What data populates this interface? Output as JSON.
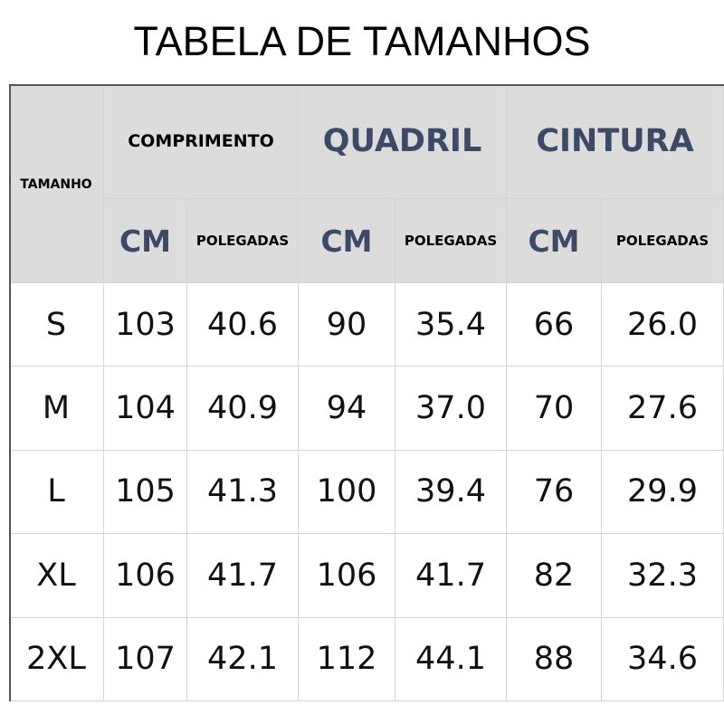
{
  "title": "TABELA DE TAMANHOS",
  "table": {
    "header": {
      "size": "TAMANHO",
      "groups": [
        "COMPRIMENTO",
        "QUADRIL",
        "CINTURA"
      ],
      "units": [
        "CM",
        "POLEGADAS",
        "CM",
        "POLEGADAS",
        "CM",
        "POLEGADAS"
      ]
    },
    "rows": [
      [
        "S",
        "103",
        "40.6",
        "90",
        "35.4",
        "66",
        "26.0"
      ],
      [
        "M",
        "104",
        "40.9",
        "94",
        "37.0",
        "70",
        "27.6"
      ],
      [
        "L",
        "105",
        "41.3",
        "100",
        "39.4",
        "76",
        "29.9"
      ],
      [
        "XL",
        "106",
        "41.7",
        "106",
        "41.7",
        "82",
        "32.3"
      ],
      [
        "2XL",
        "107",
        "42.1",
        "112",
        "44.1",
        "88",
        "34.6"
      ]
    ]
  }
}
